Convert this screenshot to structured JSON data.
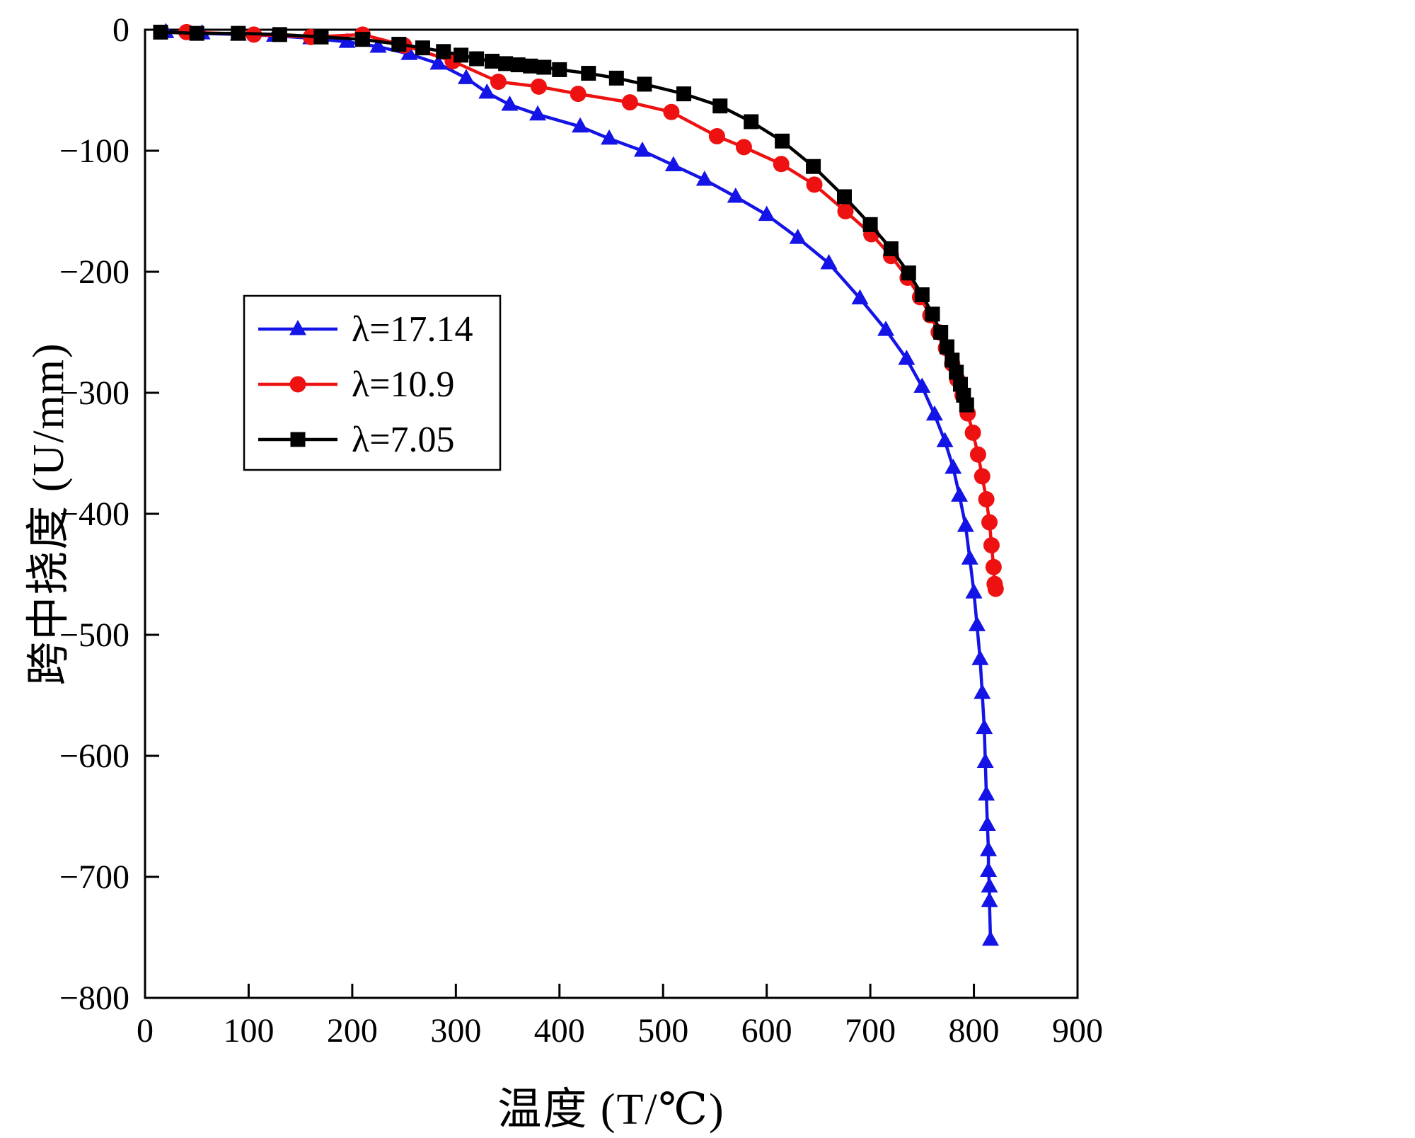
{
  "chart_data": {
    "type": "line",
    "title": "",
    "xlabel": "温度 (T/℃)",
    "ylabel": "跨中挠度 (U/mm)",
    "xlim": [
      0,
      900
    ],
    "ylim": [
      -800,
      0
    ],
    "xticks": [
      0,
      100,
      200,
      300,
      400,
      500,
      600,
      700,
      800,
      900
    ],
    "yticks": [
      0,
      -100,
      -200,
      -300,
      -400,
      -500,
      -600,
      -700,
      -800
    ],
    "grid": false,
    "legend_position": "left-center",
    "frame_color": "#000000",
    "background_color": "#ffffff",
    "series": [
      {
        "name": "λ=17.14",
        "color": "#1414e6",
        "marker": "triangle",
        "points": [
          [
            20,
            -2
          ],
          [
            55,
            -3
          ],
          [
            90,
            -4
          ],
          [
            125,
            -5
          ],
          [
            160,
            -7
          ],
          [
            195,
            -10
          ],
          [
            225,
            -14
          ],
          [
            255,
            -20
          ],
          [
            283,
            -28
          ],
          [
            310,
            -40
          ],
          [
            330,
            -52
          ],
          [
            352,
            -62
          ],
          [
            379,
            -70
          ],
          [
            420,
            -80
          ],
          [
            448,
            -90
          ],
          [
            480,
            -100
          ],
          [
            510,
            -112
          ],
          [
            540,
            -124
          ],
          [
            570,
            -138
          ],
          [
            600,
            -153
          ],
          [
            630,
            -172
          ],
          [
            660,
            -193
          ],
          [
            690,
            -222
          ],
          [
            715,
            -248
          ],
          [
            735,
            -272
          ],
          [
            750,
            -295
          ],
          [
            762,
            -318
          ],
          [
            772,
            -340
          ],
          [
            780,
            -362
          ],
          [
            786,
            -385
          ],
          [
            792,
            -410
          ],
          [
            796,
            -437
          ],
          [
            800,
            -465
          ],
          [
            803,
            -492
          ],
          [
            806,
            -520
          ],
          [
            808,
            -548
          ],
          [
            810,
            -577
          ],
          [
            811,
            -605
          ],
          [
            812,
            -632
          ],
          [
            813,
            -657
          ],
          [
            814,
            -678
          ],
          [
            814,
            -695
          ],
          [
            815,
            -708
          ],
          [
            815,
            -720
          ],
          [
            816,
            -752
          ]
        ]
      },
      {
        "name": "λ=10.9",
        "color": "#ee1111",
        "marker": "circle",
        "points": [
          [
            40,
            -2
          ],
          [
            105,
            -4
          ],
          [
            160,
            -6
          ],
          [
            210,
            -4
          ],
          [
            250,
            -13
          ],
          [
            297,
            -26
          ],
          [
            341,
            -43
          ],
          [
            380,
            -47
          ],
          [
            418,
            -53
          ],
          [
            468,
            -60
          ],
          [
            508,
            -68
          ],
          [
            552,
            -88
          ],
          [
            578,
            -97
          ],
          [
            614,
            -111
          ],
          [
            646,
            -128
          ],
          [
            676,
            -150
          ],
          [
            701,
            -169
          ],
          [
            720,
            -187
          ],
          [
            736,
            -205
          ],
          [
            748,
            -221
          ],
          [
            758,
            -236
          ],
          [
            766,
            -250
          ],
          [
            773,
            -263
          ],
          [
            779,
            -276
          ],
          [
            784,
            -289
          ],
          [
            789,
            -302
          ],
          [
            794,
            -317
          ],
          [
            799,
            -333
          ],
          [
            804,
            -351
          ],
          [
            808,
            -369
          ],
          [
            812,
            -388
          ],
          [
            815,
            -407
          ],
          [
            817,
            -426
          ],
          [
            819,
            -444
          ],
          [
            820,
            -458
          ],
          [
            821,
            -462
          ]
        ]
      },
      {
        "name": "λ=7.05",
        "color": "#000000",
        "marker": "square",
        "points": [
          [
            15,
            -2
          ],
          [
            50,
            -3
          ],
          [
            90,
            -3
          ],
          [
            130,
            -4
          ],
          [
            170,
            -6
          ],
          [
            210,
            -8
          ],
          [
            245,
            -12
          ],
          [
            268,
            -15
          ],
          [
            288,
            -18
          ],
          [
            305,
            -21
          ],
          [
            320,
            -24
          ],
          [
            335,
            -26
          ],
          [
            348,
            -28
          ],
          [
            360,
            -29
          ],
          [
            372,
            -30
          ],
          [
            385,
            -31
          ],
          [
            400,
            -33
          ],
          [
            428,
            -36
          ],
          [
            455,
            -40
          ],
          [
            482,
            -45
          ],
          [
            520,
            -53
          ],
          [
            555,
            -63
          ],
          [
            585,
            -76
          ],
          [
            615,
            -92
          ],
          [
            645,
            -113
          ],
          [
            675,
            -138
          ],
          [
            700,
            -161
          ],
          [
            720,
            -181
          ],
          [
            737,
            -201
          ],
          [
            750,
            -219
          ],
          [
            760,
            -235
          ],
          [
            768,
            -250
          ],
          [
            774,
            -262
          ],
          [
            779,
            -273
          ],
          [
            783,
            -283
          ],
          [
            787,
            -293
          ],
          [
            790,
            -302
          ],
          [
            793,
            -310
          ]
        ]
      }
    ]
  }
}
